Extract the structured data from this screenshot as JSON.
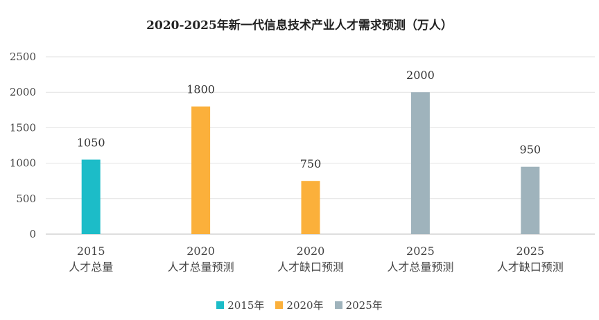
{
  "chart_data": {
    "type": "bar",
    "title": "2020-2025年新一代信息技术产业人才需求预测（万人）",
    "categories": [
      {
        "line1": "2015",
        "line2": "人才总量"
      },
      {
        "line1": "2020",
        "line2": "人才总量预测"
      },
      {
        "line1": "2020",
        "line2": "人才缺口预测"
      },
      {
        "line1": "2025",
        "line2": "人才总量预测"
      },
      {
        "line1": "2025",
        "line2": "人才缺口预测"
      }
    ],
    "series": [
      {
        "name": "2015年",
        "color": "#1cbcc8",
        "values": [
          1050,
          null,
          null,
          null,
          null
        ]
      },
      {
        "name": "2020年",
        "color": "#fbb03b",
        "values": [
          null,
          1800,
          750,
          null,
          null
        ]
      },
      {
        "name": "2025年",
        "color": "#9fb3bc",
        "values": [
          null,
          null,
          null,
          2000,
          950
        ]
      }
    ],
    "ylim": [
      0,
      2500
    ],
    "yticks": [
      0,
      500,
      1000,
      1500,
      2000,
      2500
    ],
    "grid": true,
    "legend_position": "bottom"
  }
}
